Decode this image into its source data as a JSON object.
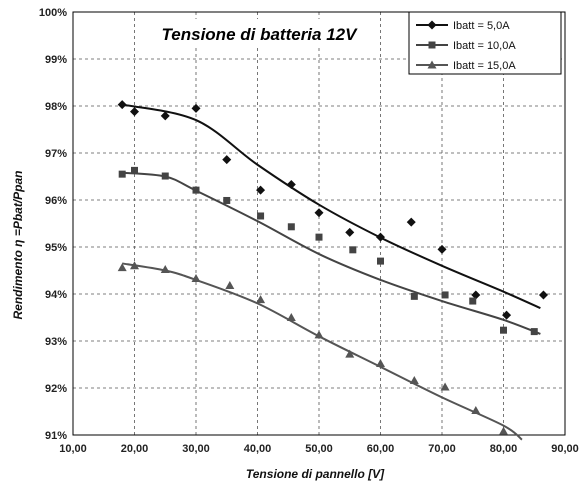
{
  "chart_data": {
    "type": "scatter",
    "title": "Tensione di batteria 12V",
    "xlabel": "Tensione di pannello [V]",
    "ylabel": "Rendimento η =Pbat/Ppan",
    "xlim": [
      10,
      90
    ],
    "ylim": [
      91,
      100
    ],
    "x_ticks": [
      "10,00",
      "20,00",
      "30,00",
      "40,00",
      "50,00",
      "60,00",
      "70,00",
      "80,00",
      "90,00"
    ],
    "y_ticks": [
      "91%",
      "92%",
      "93%",
      "94%",
      "95%",
      "96%",
      "97%",
      "98%",
      "99%",
      "100%"
    ],
    "grid": true,
    "legend_position": "top-right",
    "series": [
      {
        "name": "Ibatt = 5,0A",
        "marker": "diamond",
        "color": "#111111",
        "points": [
          [
            18,
            98.03
          ],
          [
            20,
            97.88
          ],
          [
            25,
            97.79
          ],
          [
            30,
            97.95
          ],
          [
            35,
            96.86
          ],
          [
            40.5,
            96.21
          ],
          [
            45.5,
            96.33
          ],
          [
            50,
            95.73
          ],
          [
            55,
            95.31
          ],
          [
            60,
            95.21
          ],
          [
            65,
            95.53
          ],
          [
            70,
            94.95
          ],
          [
            75.5,
            93.98
          ],
          [
            80.5,
            93.55
          ],
          [
            86.5,
            93.98
          ]
        ],
        "trend": [
          [
            18,
            98.03
          ],
          [
            30,
            97.7
          ],
          [
            40,
            96.75
          ],
          [
            50,
            95.9
          ],
          [
            60,
            95.2
          ],
          [
            70,
            94.6
          ],
          [
            80,
            94.05
          ],
          [
            86,
            93.7
          ]
        ]
      },
      {
        "name": "Ibatt = 10,0A",
        "marker": "square",
        "color": "#444444",
        "points": [
          [
            18,
            96.55
          ],
          [
            20,
            96.63
          ],
          [
            25,
            96.51
          ],
          [
            30,
            96.21
          ],
          [
            35,
            95.99
          ],
          [
            40.5,
            95.66
          ],
          [
            45.5,
            95.43
          ],
          [
            50,
            95.21
          ],
          [
            55.5,
            94.94
          ],
          [
            60,
            94.7
          ],
          [
            65.5,
            93.95
          ],
          [
            70.5,
            93.98
          ],
          [
            75,
            93.85
          ],
          [
            80,
            93.23
          ],
          [
            85,
            93.2
          ]
        ],
        "trend": [
          [
            18,
            96.58
          ],
          [
            25,
            96.5
          ],
          [
            30,
            96.2
          ],
          [
            40,
            95.55
          ],
          [
            50,
            94.85
          ],
          [
            60,
            94.3
          ],
          [
            70,
            93.85
          ],
          [
            80,
            93.45
          ],
          [
            86,
            93.15
          ]
        ]
      },
      {
        "name": "Ibatt = 15,0A",
        "marker": "triangle",
        "color": "#555555",
        "points": [
          [
            18,
            94.56
          ],
          [
            20,
            94.6
          ],
          [
            25,
            94.52
          ],
          [
            30,
            94.33
          ],
          [
            35.5,
            94.18
          ],
          [
            40.5,
            93.88
          ],
          [
            45.5,
            93.5
          ],
          [
            50,
            93.13
          ],
          [
            55,
            92.72
          ],
          [
            60,
            92.52
          ],
          [
            65.5,
            92.16
          ],
          [
            70.5,
            92.02
          ],
          [
            75.5,
            91.52
          ],
          [
            80,
            91.08
          ]
        ],
        "trend": [
          [
            18,
            94.65
          ],
          [
            25,
            94.5
          ],
          [
            30,
            94.3
          ],
          [
            40,
            93.8
          ],
          [
            50,
            93.1
          ],
          [
            60,
            92.45
          ],
          [
            70,
            91.8
          ],
          [
            80,
            91.2
          ],
          [
            83,
            90.9
          ]
        ]
      }
    ]
  }
}
